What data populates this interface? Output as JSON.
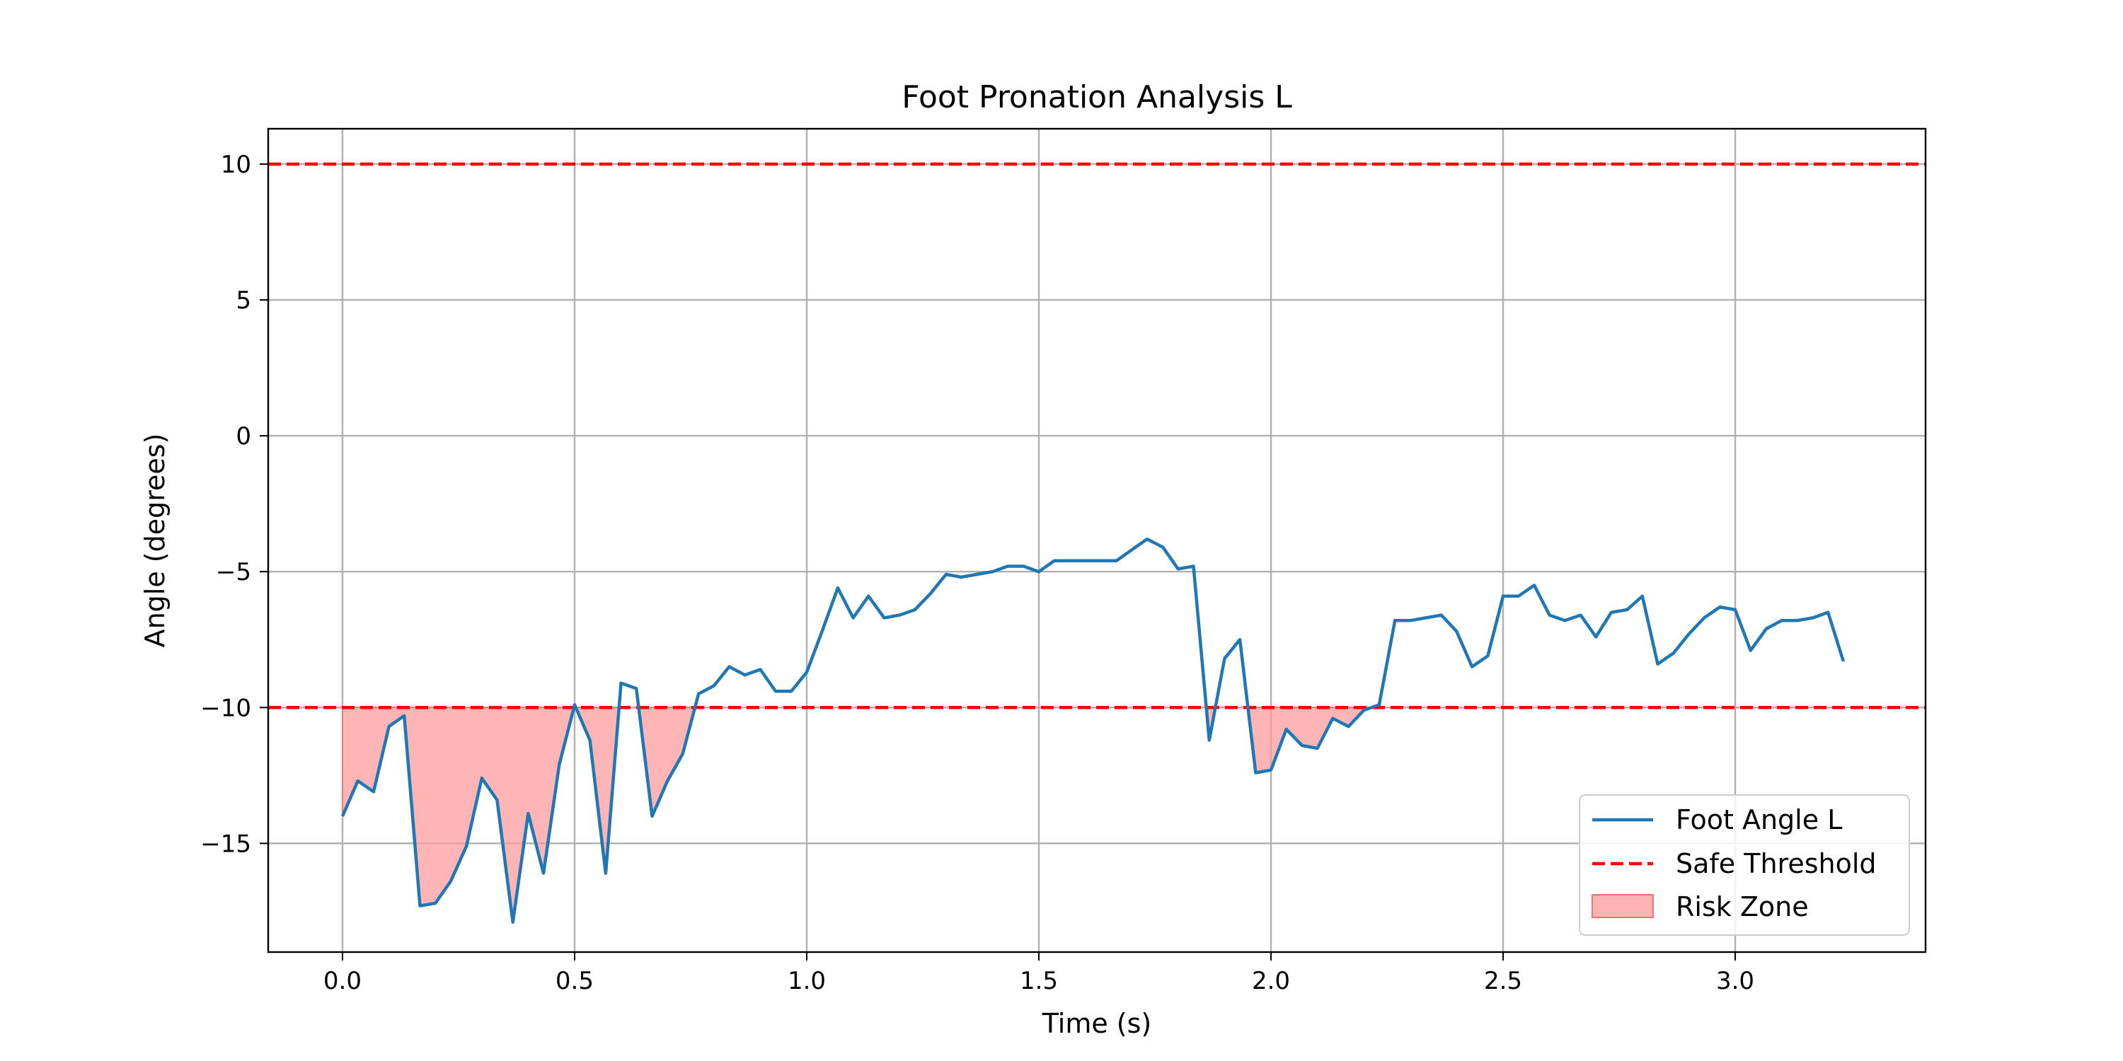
{
  "chart_data": {
    "type": "line",
    "title": "Foot Pronation Analysis L",
    "xlabel": "Time (s)",
    "ylabel": "Angle (degrees)",
    "xlim": [
      -0.16,
      3.41
    ],
    "ylim": [
      -19.0,
      11.3
    ],
    "xticks": [
      0.0,
      0.5,
      1.0,
      1.5,
      2.0,
      2.5,
      3.0
    ],
    "xtick_labels": [
      "0.0",
      "0.5",
      "1.0",
      "1.5",
      "2.0",
      "2.5",
      "3.0"
    ],
    "yticks": [
      -15,
      -10,
      -5,
      0,
      5,
      10
    ],
    "ytick_labels": [
      "−15",
      "−10",
      "−5",
      "0",
      "5",
      "10"
    ],
    "grid": true,
    "legend_position": "lower-right",
    "colors": {
      "series": "#1f77b4",
      "threshold": "#ff0000",
      "risk_fill": "#ff9999",
      "risk_edge": "#ff6f6f"
    },
    "series": [
      {
        "name": "Foot Angle L",
        "x": [
          0.0,
          0.033,
          0.067,
          0.1,
          0.133,
          0.167,
          0.2,
          0.233,
          0.267,
          0.3,
          0.333,
          0.367,
          0.4,
          0.433,
          0.467,
          0.5,
          0.533,
          0.567,
          0.6,
          0.633,
          0.667,
          0.7,
          0.733,
          0.767,
          0.8,
          0.833,
          0.867,
          0.9,
          0.933,
          0.967,
          1.0,
          1.033,
          1.067,
          1.1,
          1.133,
          1.167,
          1.2,
          1.233,
          1.267,
          1.3,
          1.333,
          1.367,
          1.4,
          1.433,
          1.467,
          1.5,
          1.533,
          1.567,
          1.6,
          1.633,
          1.667,
          1.7,
          1.733,
          1.767,
          1.8,
          1.833,
          1.867,
          1.9,
          1.933,
          1.967,
          2.0,
          2.033,
          2.067,
          2.1,
          2.133,
          2.167,
          2.2,
          2.233,
          2.267,
          2.3,
          2.333,
          2.367,
          2.4,
          2.433,
          2.467,
          2.5,
          2.533,
          2.567,
          2.6,
          2.633,
          2.667,
          2.7,
          2.733,
          2.767,
          2.8,
          2.833,
          2.867,
          2.9,
          2.933,
          2.967,
          3.0,
          3.033,
          3.067,
          3.1,
          3.133,
          3.167,
          3.2,
          3.233
        ],
        "values": [
          -14.0,
          -12.7,
          -13.1,
          -10.7,
          -10.3,
          -17.3,
          -17.2,
          -16.4,
          -15.1,
          -12.6,
          -13.4,
          -17.9,
          -13.9,
          -16.1,
          -12.1,
          -9.9,
          -11.2,
          -16.1,
          -9.1,
          -9.3,
          -14.0,
          -12.7,
          -11.7,
          -9.5,
          -9.2,
          -8.5,
          -8.8,
          -8.6,
          -9.4,
          -9.4,
          -8.7,
          -7.2,
          -5.6,
          -6.7,
          -5.9,
          -6.7,
          -6.6,
          -6.4,
          -5.8,
          -5.1,
          -5.2,
          -5.1,
          -5.0,
          -4.8,
          -4.8,
          -5.0,
          -4.6,
          -4.6,
          -4.6,
          -4.6,
          -4.6,
          -4.2,
          -3.8,
          -4.1,
          -4.9,
          -4.8,
          -11.2,
          -8.2,
          -7.5,
          -12.4,
          -12.3,
          -10.8,
          -11.4,
          -11.5,
          -10.4,
          -10.7,
          -10.1,
          -9.9,
          -6.8,
          -6.8,
          -6.7,
          -6.6,
          -7.2,
          -8.5,
          -8.1,
          -5.9,
          -5.9,
          -5.5,
          -6.6,
          -6.8,
          -6.6,
          -7.4,
          -6.5,
          -6.4,
          -5.9,
          -8.4,
          -8.0,
          -7.3,
          -6.7,
          -6.3,
          -6.4,
          -7.9,
          -7.1,
          -6.8,
          -6.8,
          -6.7,
          -6.5,
          -8.3
        ]
      },
      {
        "name": "Safe Threshold",
        "values": [
          10,
          -10
        ]
      },
      {
        "name": "Risk Zone",
        "below": -10
      }
    ]
  }
}
